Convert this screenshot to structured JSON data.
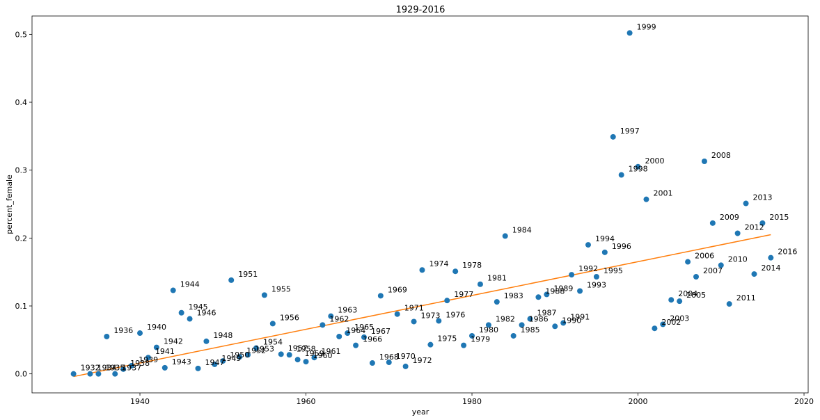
{
  "chart_data": {
    "type": "scatter",
    "title": "1929-2016",
    "xlabel": "year",
    "ylabel": "percent_female",
    "xlim": [
      1927,
      2020.5
    ],
    "ylim": [
      -0.028,
      0.527
    ],
    "xticks": [
      1940,
      1960,
      1980,
      2000,
      2020
    ],
    "yticks": [
      0.0,
      0.1,
      0.2,
      0.3,
      0.4,
      0.5
    ],
    "xtick_labels": [
      "1940",
      "1960",
      "1980",
      "2000",
      "2020"
    ],
    "ytick_labels": [
      "0.0",
      "0.1",
      "0.2",
      "0.3",
      "0.4",
      "0.5"
    ],
    "grid": false,
    "legend": "none",
    "colors": {
      "points": "#1f77b4",
      "trend": "#ff7f0e"
    },
    "series": [
      {
        "type": "scatter",
        "points": [
          {
            "x": 1932,
            "y": 0.0,
            "label": "1932"
          },
          {
            "x": 1934,
            "y": 0.0,
            "label": "1934"
          },
          {
            "x": 1935,
            "y": 0.0,
            "label": "1935"
          },
          {
            "x": 1936,
            "y": 0.055,
            "label": "1936"
          },
          {
            "x": 1937,
            "y": 0.0,
            "label": "1937"
          },
          {
            "x": 1938,
            "y": 0.007,
            "label": "1938"
          },
          {
            "x": 1939,
            "y": 0.012,
            "label": "1939"
          },
          {
            "x": 1940,
            "y": 0.06,
            "label": "1940"
          },
          {
            "x": 1941,
            "y": 0.024,
            "label": "1941"
          },
          {
            "x": 1942,
            "y": 0.039,
            "label": "1942"
          },
          {
            "x": 1943,
            "y": 0.009,
            "label": "1943"
          },
          {
            "x": 1944,
            "y": 0.123,
            "label": "1944"
          },
          {
            "x": 1945,
            "y": 0.09,
            "label": "1945"
          },
          {
            "x": 1946,
            "y": 0.081,
            "label": "1946"
          },
          {
            "x": 1947,
            "y": 0.008,
            "label": "1947"
          },
          {
            "x": 1948,
            "y": 0.048,
            "label": "1948"
          },
          {
            "x": 1949,
            "y": 0.014,
            "label": "1949"
          },
          {
            "x": 1950,
            "y": 0.019,
            "label": "1950"
          },
          {
            "x": 1951,
            "y": 0.138,
            "label": "1951"
          },
          {
            "x": 1952,
            "y": 0.025,
            "label": "1952"
          },
          {
            "x": 1953,
            "y": 0.028,
            "label": "1953"
          },
          {
            "x": 1954,
            "y": 0.038,
            "label": "1954"
          },
          {
            "x": 1955,
            "y": 0.116,
            "label": "1955"
          },
          {
            "x": 1956,
            "y": 0.074,
            "label": "1956"
          },
          {
            "x": 1957,
            "y": 0.029,
            "label": "1957"
          },
          {
            "x": 1958,
            "y": 0.028,
            "label": "1958"
          },
          {
            "x": 1959,
            "y": 0.021,
            "label": "1959"
          },
          {
            "x": 1960,
            "y": 0.018,
            "label": "1960"
          },
          {
            "x": 1961,
            "y": 0.024,
            "label": "1961"
          },
          {
            "x": 1962,
            "y": 0.072,
            "label": "1962"
          },
          {
            "x": 1963,
            "y": 0.085,
            "label": "1963"
          },
          {
            "x": 1964,
            "y": 0.055,
            "label": "1964"
          },
          {
            "x": 1965,
            "y": 0.06,
            "label": "1965"
          },
          {
            "x": 1966,
            "y": 0.042,
            "label": "1966"
          },
          {
            "x": 1967,
            "y": 0.054,
            "label": "1967"
          },
          {
            "x": 1968,
            "y": 0.016,
            "label": "1968"
          },
          {
            "x": 1969,
            "y": 0.115,
            "label": "1969"
          },
          {
            "x": 1970,
            "y": 0.017,
            "label": "1970"
          },
          {
            "x": 1971,
            "y": 0.088,
            "label": "1971"
          },
          {
            "x": 1972,
            "y": 0.011,
            "label": "1972"
          },
          {
            "x": 1973,
            "y": 0.077,
            "label": "1973"
          },
          {
            "x": 1974,
            "y": 0.153,
            "label": "1974"
          },
          {
            "x": 1975,
            "y": 0.043,
            "label": "1975"
          },
          {
            "x": 1976,
            "y": 0.078,
            "label": "1976"
          },
          {
            "x": 1977,
            "y": 0.108,
            "label": "1977"
          },
          {
            "x": 1978,
            "y": 0.151,
            "label": "1978"
          },
          {
            "x": 1979,
            "y": 0.042,
            "label": "1979"
          },
          {
            "x": 1980,
            "y": 0.056,
            "label": "1980"
          },
          {
            "x": 1981,
            "y": 0.132,
            "label": "1981"
          },
          {
            "x": 1982,
            "y": 0.072,
            "label": "1982"
          },
          {
            "x": 1983,
            "y": 0.106,
            "label": "1983"
          },
          {
            "x": 1984,
            "y": 0.203,
            "label": "1984"
          },
          {
            "x": 1985,
            "y": 0.056,
            "label": "1985"
          },
          {
            "x": 1986,
            "y": 0.072,
            "label": "1986"
          },
          {
            "x": 1987,
            "y": 0.081,
            "label": "1987"
          },
          {
            "x": 1988,
            "y": 0.113,
            "label": "1988"
          },
          {
            "x": 1989,
            "y": 0.117,
            "label": "1989"
          },
          {
            "x": 1990,
            "y": 0.07,
            "label": "1990"
          },
          {
            "x": 1991,
            "y": 0.075,
            "label": "1991"
          },
          {
            "x": 1992,
            "y": 0.146,
            "label": "1992"
          },
          {
            "x": 1993,
            "y": 0.122,
            "label": "1993"
          },
          {
            "x": 1994,
            "y": 0.19,
            "label": "1994"
          },
          {
            "x": 1995,
            "y": 0.143,
            "label": "1995"
          },
          {
            "x": 1996,
            "y": 0.179,
            "label": "1996"
          },
          {
            "x": 1997,
            "y": 0.349,
            "label": "1997"
          },
          {
            "x": 1998,
            "y": 0.293,
            "label": "1998"
          },
          {
            "x": 1999,
            "y": 0.502,
            "label": "1999"
          },
          {
            "x": 2000,
            "y": 0.305,
            "label": "2000"
          },
          {
            "x": 2001,
            "y": 0.257,
            "label": "2001"
          },
          {
            "x": 2002,
            "y": 0.067,
            "label": "2002"
          },
          {
            "x": 2003,
            "y": 0.073,
            "label": "2003"
          },
          {
            "x": 2004,
            "y": 0.109,
            "label": "2004"
          },
          {
            "x": 2005,
            "y": 0.107,
            "label": "2005"
          },
          {
            "x": 2006,
            "y": 0.165,
            "label": "2006"
          },
          {
            "x": 2007,
            "y": 0.143,
            "label": "2007"
          },
          {
            "x": 2008,
            "y": 0.313,
            "label": "2008"
          },
          {
            "x": 2009,
            "y": 0.222,
            "label": "2009"
          },
          {
            "x": 2010,
            "y": 0.16,
            "label": "2010"
          },
          {
            "x": 2011,
            "y": 0.103,
            "label": "2011"
          },
          {
            "x": 2012,
            "y": 0.207,
            "label": "2012"
          },
          {
            "x": 2013,
            "y": 0.251,
            "label": "2013"
          },
          {
            "x": 2014,
            "y": 0.147,
            "label": "2014"
          },
          {
            "x": 2015,
            "y": 0.222,
            "label": "2015"
          },
          {
            "x": 2016,
            "y": 0.171,
            "label": "2016"
          }
        ]
      },
      {
        "type": "line",
        "x": [
          1932,
          2016
        ],
        "y": [
          -0.004,
          0.205
        ]
      }
    ]
  }
}
